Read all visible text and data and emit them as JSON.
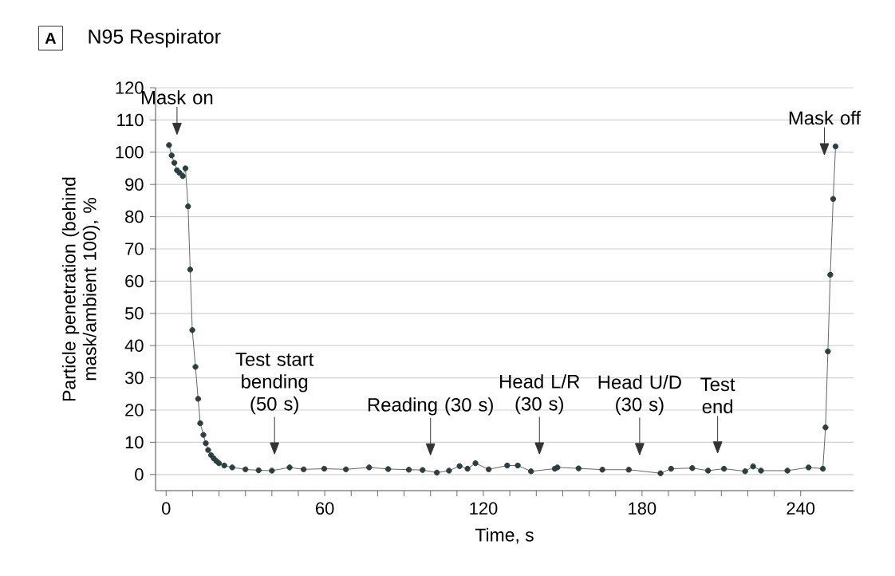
{
  "chart_data": {
    "type": "line",
    "title": "N95 Respirator",
    "xlabel": "Time, s",
    "ylabel": "Particle penetration (behind mask/ambient 100), %",
    "x": [
      1.1,
      2.1,
      3.1,
      4.1,
      5.1,
      6.3,
      7.3,
      8.3,
      9.1,
      9.9,
      11.1,
      12.1,
      12.9,
      14.1,
      15,
      15.9,
      17,
      18,
      19,
      20,
      22,
      25,
      30,
      35,
      40,
      46.7,
      52,
      59.8,
      68,
      76.8,
      84,
      91.8,
      97,
      102.4,
      107,
      111,
      114,
      117,
      122,
      129,
      133,
      138,
      147,
      148,
      156,
      165,
      175,
      187,
      191,
      199,
      205,
      211,
      219,
      222,
      225,
      235,
      243,
      248.4,
      249.4,
      250.3,
      251.2,
      252.3,
      253.2
    ],
    "values": [
      102.2,
      99,
      96.7,
      94.4,
      93.6,
      92.6,
      95,
      83.2,
      63.6,
      44.8,
      33.4,
      23.5,
      15.9,
      12.3,
      9.7,
      7.6,
      6,
      5,
      4.2,
      3.5,
      2.8,
      2.2,
      1.6,
      1.3,
      1.2,
      2.2,
      1.6,
      1.8,
      1.6,
      2.2,
      1.7,
      1.5,
      1.4,
      0.6,
      1.2,
      2.6,
      1.8,
      3.5,
      1.6,
      2.8,
      2.8,
      1,
      1.8,
      2.2,
      1.9,
      1.5,
      1.5,
      0.4,
      1.8,
      2,
      1.2,
      1.8,
      1,
      2.5,
      1.2,
      1.2,
      2.2,
      1.8,
      14.6,
      38.2,
      62,
      85.5,
      101.8
    ],
    "color": "#2b3f42",
    "marker": "circle",
    "xlim": [
      -4,
      260
    ],
    "ylim": [
      -5,
      120
    ],
    "xticks": [
      0,
      60,
      120,
      180,
      240
    ],
    "yticks": [
      0,
      10,
      20,
      30,
      40,
      50,
      60,
      70,
      80,
      90,
      100,
      110,
      120
    ],
    "grid": "y",
    "annotations": [
      "A",
      {
        "text": "Mask on",
        "x": 1.1,
        "y": 102.2
      },
      {
        "text": "Test start bending (50 s)",
        "x": 41,
        "y": 1.3
      },
      {
        "text": "Reading (30 s)",
        "x": 100,
        "y": 1
      },
      {
        "text": "Head L/R (30 s)",
        "x": 141.2,
        "y": 1.3
      },
      {
        "text": "Head U/D (30 s)",
        "x": 179.1,
        "y": 1.1
      },
      {
        "text": "Test end",
        "x": 208.6,
        "y": 1.6
      },
      {
        "text": "Mask off",
        "x": 253.2,
        "y": 101.8
      }
    ]
  }
}
